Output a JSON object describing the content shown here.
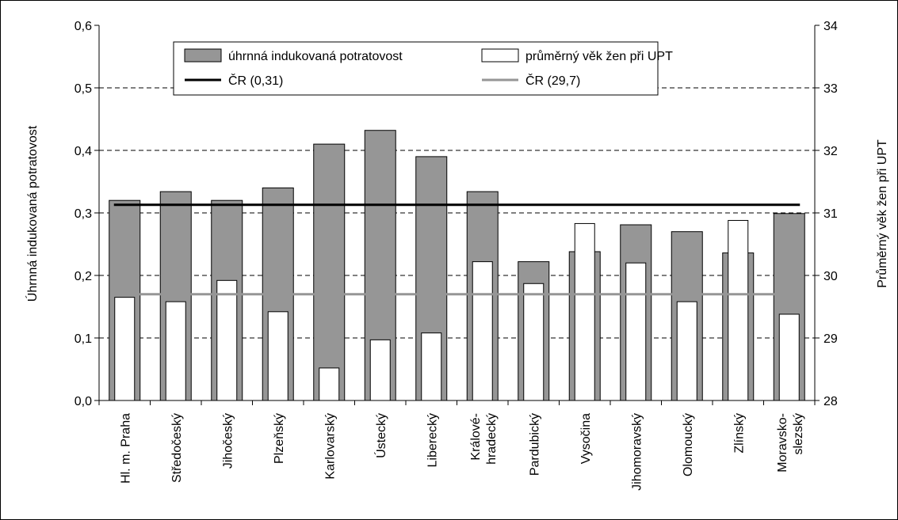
{
  "chart_data": {
    "type": "bar",
    "categories": [
      [
        "Hl. m. Praha"
      ],
      [
        "Středočeský"
      ],
      [
        "Jihočeský"
      ],
      [
        "Plzeňský"
      ],
      [
        "Karlovarský"
      ],
      [
        "Ústecký"
      ],
      [
        "Liberecký"
      ],
      [
        "Králové-",
        "hradecký"
      ],
      [
        "Pardubický"
      ],
      [
        "Vysočina"
      ],
      [
        "Jihomoravský"
      ],
      [
        "Olomoucký"
      ],
      [
        "Zlínský"
      ],
      [
        "Moravsko-",
        "slezský"
      ]
    ],
    "series": [
      {
        "name": "úhrnná indukovaná potratovost",
        "axis": "left",
        "color": "#969696",
        "values": [
          0.32,
          0.334,
          0.32,
          0.34,
          0.41,
          0.432,
          0.39,
          0.334,
          0.222,
          0.238,
          0.281,
          0.27,
          0.236,
          0.299
        ]
      },
      {
        "name": "průměrný věk žen při UPT",
        "axis": "right",
        "color": "#ffffff",
        "values": [
          29.65,
          29.58,
          29.92,
          29.42,
          28.52,
          28.97,
          29.08,
          30.22,
          29.87,
          30.83,
          30.2,
          29.58,
          30.88,
          29.38
        ]
      }
    ],
    "reference_lines": [
      {
        "name": "ČR (0,31)",
        "axis": "left",
        "value": 0.313,
        "color": "#000000"
      },
      {
        "name": "ČR (29,7)",
        "axis": "right",
        "value": 29.7,
        "color": "#969696"
      }
    ],
    "left_axis": {
      "label": "Úhrnná indukovaná potratovost",
      "min": 0.0,
      "max": 0.6,
      "step": 0.1,
      "tick_labels": [
        "0,0",
        "0,1",
        "0,2",
        "0,3",
        "0,4",
        "0,5",
        "0,6"
      ]
    },
    "right_axis": {
      "label": "Průměrný věk žen při UPT",
      "min": 28,
      "max": 34,
      "step": 1,
      "tick_labels": [
        "28",
        "29",
        "30",
        "31",
        "32",
        "33",
        "34"
      ]
    },
    "grid": "horizontal-dashed",
    "legend_position": "top-center"
  }
}
